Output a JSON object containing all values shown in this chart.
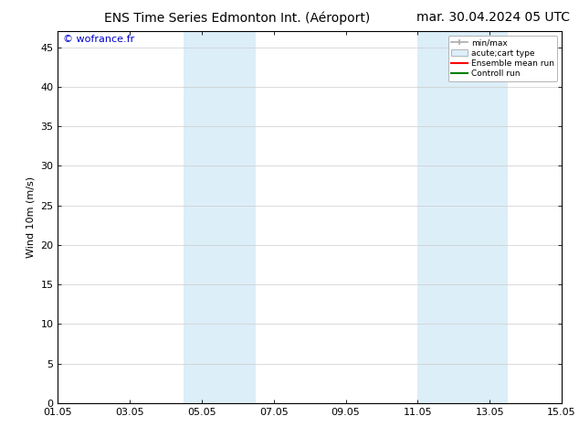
{
  "title_left": "ENS Time Series Edmonton Int. (Aéroport)",
  "title_right": "mar. 30.04.2024 05 UTC",
  "ylabel": "Wind 10m (m/s)",
  "watermark": "© wofrance.fr",
  "xtick_labels": [
    "01.05",
    "03.05",
    "05.05",
    "07.05",
    "09.05",
    "11.05",
    "13.05",
    "15.05"
  ],
  "xtick_positions": [
    0,
    2,
    4,
    6,
    8,
    10,
    12,
    14
  ],
  "ylim": [
    0,
    47
  ],
  "ytick_positions": [
    0,
    5,
    10,
    15,
    20,
    25,
    30,
    35,
    40,
    45
  ],
  "ytick_labels": [
    "0",
    "5",
    "10",
    "15",
    "20",
    "25",
    "30",
    "35",
    "40",
    "45"
  ],
  "shaded_bands": [
    {
      "x_start": 3.5,
      "x_end": 4.25
    },
    {
      "x_start": 4.25,
      "x_end": 5.5
    },
    {
      "x_start": 10.0,
      "x_end": 10.75
    },
    {
      "x_start": 10.75,
      "x_end": 12.5
    }
  ],
  "shaded_color": "#dceef8",
  "legend_entries": [
    {
      "label": "min/max",
      "color": "#aaaaaa",
      "type": "minmax"
    },
    {
      "label": "acute;cart type",
      "color": "#dceef8",
      "type": "box"
    },
    {
      "label": "Ensemble mean run",
      "color": "#ff0000",
      "type": "line"
    },
    {
      "label": "Controll run",
      "color": "#008000",
      "type": "line"
    }
  ],
  "background_color": "#ffffff",
  "plot_bg_color": "#ffffff",
  "border_color": "#000000",
  "title_fontsize": 10,
  "axis_fontsize": 8,
  "tick_fontsize": 8,
  "watermark_color": "#0000cc",
  "grid_color": "#cccccc",
  "xlim": [
    0,
    14
  ]
}
